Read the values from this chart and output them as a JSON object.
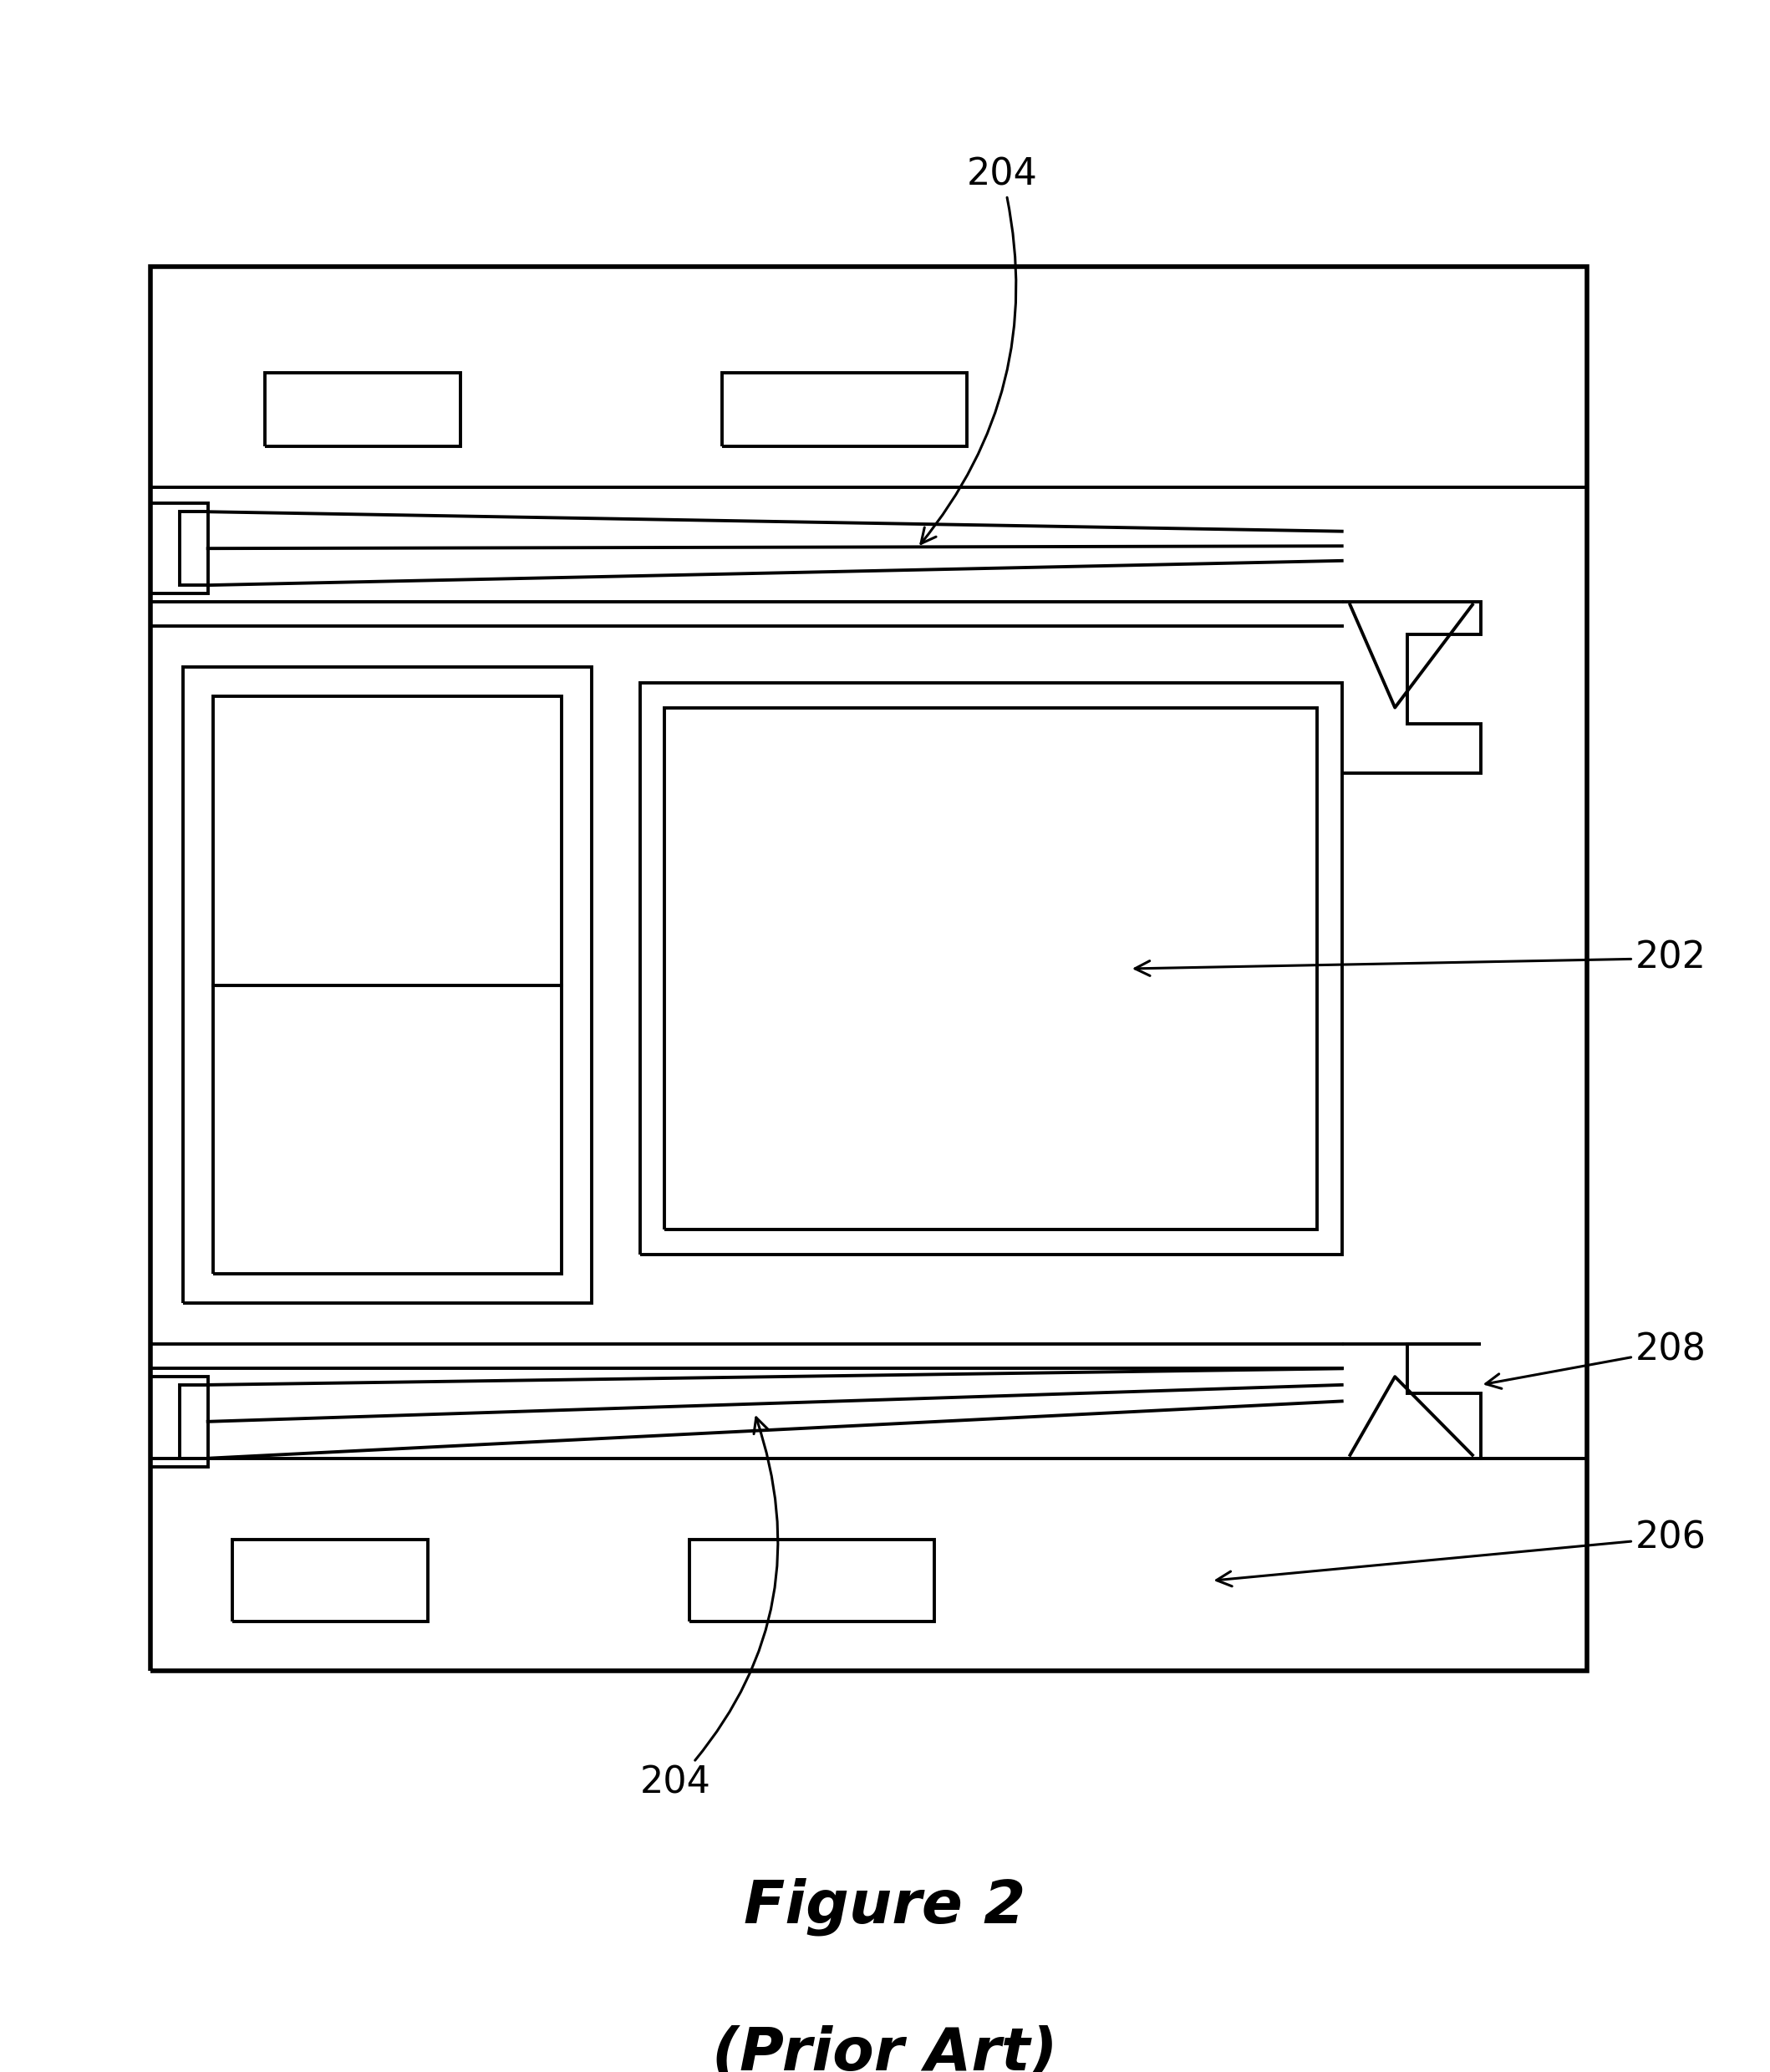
{
  "bg_color": "#ffffff",
  "lc": "#000000",
  "lw": 2.8,
  "tlw": 4.0,
  "fig_width": 21.18,
  "fig_height": 24.79,
  "title": "Figure 2",
  "subtitle": "(Prior Art)"
}
